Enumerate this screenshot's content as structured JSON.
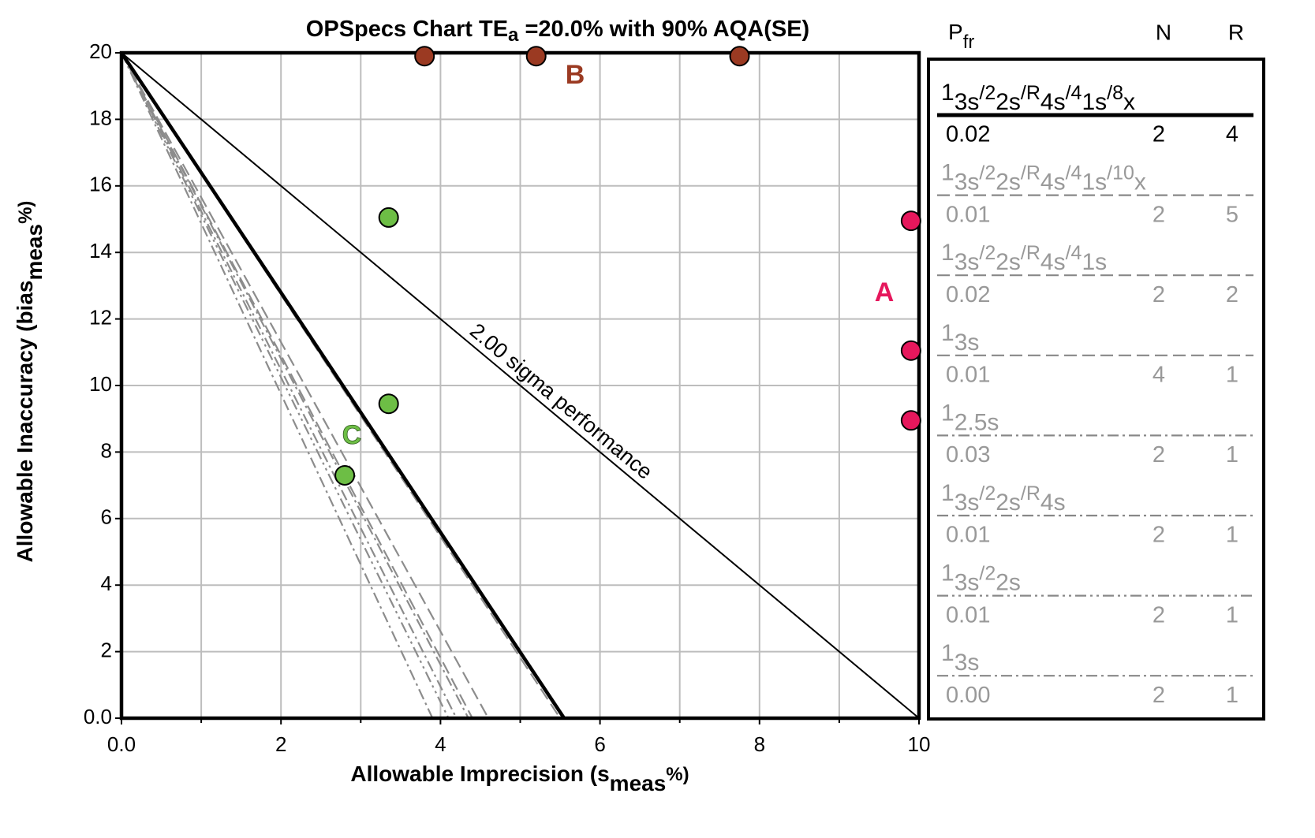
{
  "chart_data": {
    "type": "scatter",
    "title_parts": [
      "OPSpecs Chart TE",
      "a",
      " =20.0% with 90% AQA(SE)"
    ],
    "xlabel_parts": [
      "Allowable Imprecision (s",
      "meas",
      "%)"
    ],
    "ylabel_parts": [
      "Allowable Inaccuracy (bias",
      "meas",
      "%)"
    ],
    "xlim": [
      0,
      10
    ],
    "ylim": [
      0,
      20
    ],
    "xticks": [
      {
        "value": 0,
        "label": "0.0"
      },
      2,
      4,
      6,
      8,
      10
    ],
    "x_minor_ticks": [
      1,
      3,
      5,
      7,
      9
    ],
    "yticks": [
      {
        "value": 0,
        "label": "0.0"
      },
      2,
      4,
      6,
      8,
      10,
      12,
      14,
      16,
      18,
      20
    ],
    "grid": true,
    "series": [
      {
        "name": "A",
        "color": "#e6175c",
        "x": [
          9.9,
          9.9,
          9.9
        ],
        "y": [
          14.95,
          11.05,
          8.95
        ]
      },
      {
        "name": "B",
        "color": "#9b3a22",
        "x": [
          3.8,
          5.2,
          7.75
        ],
        "y": [
          19.9,
          19.9,
          19.9
        ]
      },
      {
        "name": "C",
        "color": "#6dbe45",
        "x": [
          3.35,
          3.35,
          2.8
        ],
        "y": [
          15.05,
          9.45,
          7.3
        ]
      }
    ],
    "sigma_line": {
      "label": "2.00 sigma performance",
      "color": "#000000",
      "x": [
        0,
        10
      ],
      "y": [
        20,
        0
      ]
    },
    "legend_header": {
      "pfr_parts": [
        "P",
        "fr"
      ],
      "n": "N",
      "r": "R"
    },
    "rules": [
      {
        "parts": [
          "1",
          "3s",
          "/2",
          "2s",
          "/R",
          "4s",
          "/4",
          "1s",
          "/8",
          "x"
        ],
        "pfr": 0.02,
        "n": 2,
        "r": 4,
        "color": "#000000",
        "style": "solid",
        "x": [
          0,
          5.55
        ],
        "y": [
          20,
          0
        ]
      },
      {
        "parts": [
          "1",
          "3s",
          "/2",
          "2s",
          "/R",
          "4s",
          "/4",
          "1s",
          "/10",
          "x"
        ],
        "pfr": 0.01,
        "n": 2,
        "r": 5,
        "color": "#8c8c8c",
        "style": "dash",
        "x": [
          0,
          5.5
        ],
        "y": [
          20,
          0
        ]
      },
      {
        "parts": [
          "1",
          "3s",
          "/2",
          "2s",
          "/R",
          "4s",
          "/4",
          "1s"
        ],
        "pfr": 0.02,
        "n": 2,
        "r": 2,
        "color": "#8c8c8c",
        "style": "dash",
        "x": [
          0,
          4.6
        ],
        "y": [
          20,
          0
        ]
      },
      {
        "parts": [
          "1",
          "3s"
        ],
        "pfr": 0.01,
        "n": 4,
        "r": 1,
        "color": "#8c8c8c",
        "style": "dash",
        "x": [
          0,
          4.4
        ],
        "y": [
          20,
          0
        ]
      },
      {
        "parts": [
          "1",
          "2.5s"
        ],
        "pfr": 0.03,
        "n": 2,
        "r": 1,
        "color": "#8c8c8c",
        "style": "dash-dot",
        "x": [
          0,
          4.35
        ],
        "y": [
          20,
          0
        ]
      },
      {
        "parts": [
          "1",
          "3s",
          "/2",
          "2s",
          "/R",
          "4s"
        ],
        "pfr": 0.01,
        "n": 2,
        "r": 1,
        "color": "#8c8c8c",
        "style": "dash-dot",
        "x": [
          0,
          4.2
        ],
        "y": [
          20,
          0
        ]
      },
      {
        "parts": [
          "1",
          "3s",
          "/2",
          "2s"
        ],
        "pfr": 0.01,
        "n": 2,
        "r": 1,
        "color": "#8c8c8c",
        "style": "dash-dot-dot",
        "x": [
          0,
          4.1
        ],
        "y": [
          20,
          0
        ]
      },
      {
        "parts": [
          "1",
          "3s"
        ],
        "pfr": {
          "value": 0,
          "label": "0.00"
        },
        "n": 2,
        "r": 1,
        "color": "#8c8c8c",
        "style": "dash-dot",
        "x": [
          0,
          3.9
        ],
        "y": [
          20,
          0
        ]
      }
    ]
  }
}
